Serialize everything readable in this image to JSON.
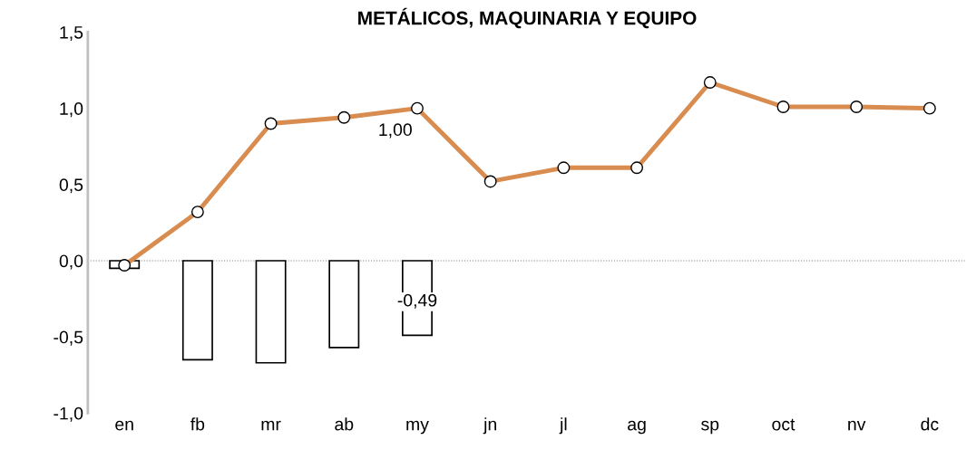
{
  "chart_data": {
    "type": "bar",
    "title": "METÁLICOS, MAQUINARIA Y EQUIPO",
    "categories": [
      "en",
      "fb",
      "mr",
      "ab",
      "my",
      "jn",
      "jl",
      "ag",
      "sp",
      "oct",
      "nv",
      "dc"
    ],
    "series": [
      {
        "color": "#ffffff",
        "values": [
          -0.05,
          -0.65,
          -0.67,
          -0.57,
          -0.49,
          null,
          null,
          null,
          null,
          null,
          null,
          null
        ],
        "value_labels": [
          null,
          null,
          null,
          null,
          "-0,49",
          null,
          null,
          null,
          null,
          null,
          null,
          null
        ]
      },
      {
        "type": "line",
        "color": "#d98c4f",
        "marker": "circle",
        "values": [
          -0.03,
          0.32,
          0.9,
          0.94,
          1.0,
          0.52,
          0.61,
          0.61,
          1.17,
          1.01,
          1.01,
          1.0
        ],
        "value_labels": [
          null,
          null,
          null,
          null,
          "1,00",
          null,
          null,
          null,
          null,
          null,
          null,
          null
        ]
      }
    ],
    "ylim": [
      -1.0,
      1.5
    ],
    "yticks": [
      {
        "value": -1.0,
        "label": "-1,0"
      },
      {
        "value": -0.5,
        "label": "-0,5"
      },
      {
        "value": 0.0,
        "label": "0,0"
      },
      {
        "value": 0.5,
        "label": "0,5"
      },
      {
        "value": 1.0,
        "label": "1,0"
      },
      {
        "value": 1.5,
        "label": "1,5"
      }
    ],
    "ref_lines": [
      {
        "axis": "y",
        "value": 0,
        "color": "#808080",
        "line_style": "dotted"
      }
    ],
    "grid": false,
    "legend": false
  }
}
